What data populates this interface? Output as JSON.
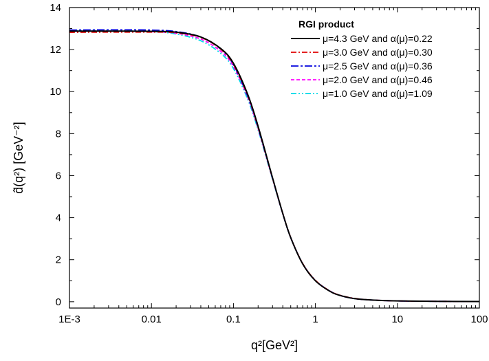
{
  "chart_data": {
    "type": "line",
    "xlabel": "q²[GeV²]",
    "ylabel": "d̂(q²) [GeV⁻²]",
    "xscale": "log",
    "xlim": [
      0.001,
      100
    ],
    "ylim": [
      -0.3,
      14
    ],
    "grid": false,
    "legend_position": "top-right",
    "legend_title": "RGI product",
    "x_tick_labels": [
      "1E-3",
      "0.01",
      "0.1",
      "1",
      "10",
      "100"
    ],
    "x_ticks": [
      0.001,
      0.01,
      0.1,
      1,
      10,
      100
    ],
    "y_tick_labels": [
      "0",
      "2",
      "4",
      "6",
      "8",
      "10",
      "12",
      "14"
    ],
    "y_ticks": [
      0,
      2,
      4,
      6,
      8,
      10,
      12,
      14
    ],
    "x": [
      0.001,
      0.003,
      0.01,
      0.02,
      0.04,
      0.07,
      0.1,
      0.15,
      0.2,
      0.3,
      0.4,
      0.5,
      0.7,
      1,
      1.5,
      2,
      3,
      5,
      10,
      30,
      100
    ],
    "series": [
      {
        "name": "μ=4.3 GeV and α(μ)=0.22",
        "color": "#000000",
        "dash": "solid",
        "values": [
          12.88,
          12.88,
          12.87,
          12.83,
          12.6,
          12.05,
          11.35,
          9.85,
          8.35,
          5.9,
          4.2,
          3.05,
          1.8,
          1.0,
          0.5,
          0.3,
          0.15,
          0.08,
          0.04,
          0.02,
          0.01
        ]
      },
      {
        "name": "μ=3.0 GeV and α(μ)=0.30",
        "color": "#e00000",
        "dash": "dash-dot",
        "values": [
          12.82,
          12.83,
          12.83,
          12.8,
          12.58,
          12.02,
          11.3,
          9.8,
          8.3,
          5.88,
          4.2,
          3.06,
          1.82,
          1.02,
          0.51,
          0.31,
          0.16,
          0.08,
          0.04,
          0.02,
          0.01
        ]
      },
      {
        "name": "μ=2.5 GeV and α(μ)=0.36",
        "color": "#0000dd",
        "dash": "dash-dot-long",
        "values": [
          12.93,
          12.94,
          12.93,
          12.86,
          12.6,
          12.02,
          11.28,
          9.76,
          8.28,
          5.87,
          4.19,
          3.05,
          1.81,
          1.01,
          0.51,
          0.3,
          0.15,
          0.08,
          0.04,
          0.02,
          0.01
        ]
      },
      {
        "name": "μ=2.0 GeV and α(μ)=0.46",
        "color": "#ff00ff",
        "dash": "dash",
        "values": [
          12.87,
          12.88,
          12.85,
          12.78,
          12.5,
          11.92,
          11.2,
          9.72,
          8.25,
          5.86,
          4.19,
          3.05,
          1.81,
          1.01,
          0.51,
          0.3,
          0.15,
          0.08,
          0.04,
          0.02,
          0.01
        ]
      },
      {
        "name": "μ=1.0 GeV and α(μ)=1.09",
        "color": "#00d8e8",
        "dash": "dash-dot-dot",
        "values": [
          12.9,
          12.9,
          12.86,
          12.74,
          12.42,
          11.82,
          11.1,
          9.62,
          8.18,
          5.83,
          4.18,
          3.05,
          1.81,
          1.01,
          0.51,
          0.3,
          0.15,
          0.08,
          0.04,
          0.02,
          0.01
        ]
      }
    ]
  }
}
